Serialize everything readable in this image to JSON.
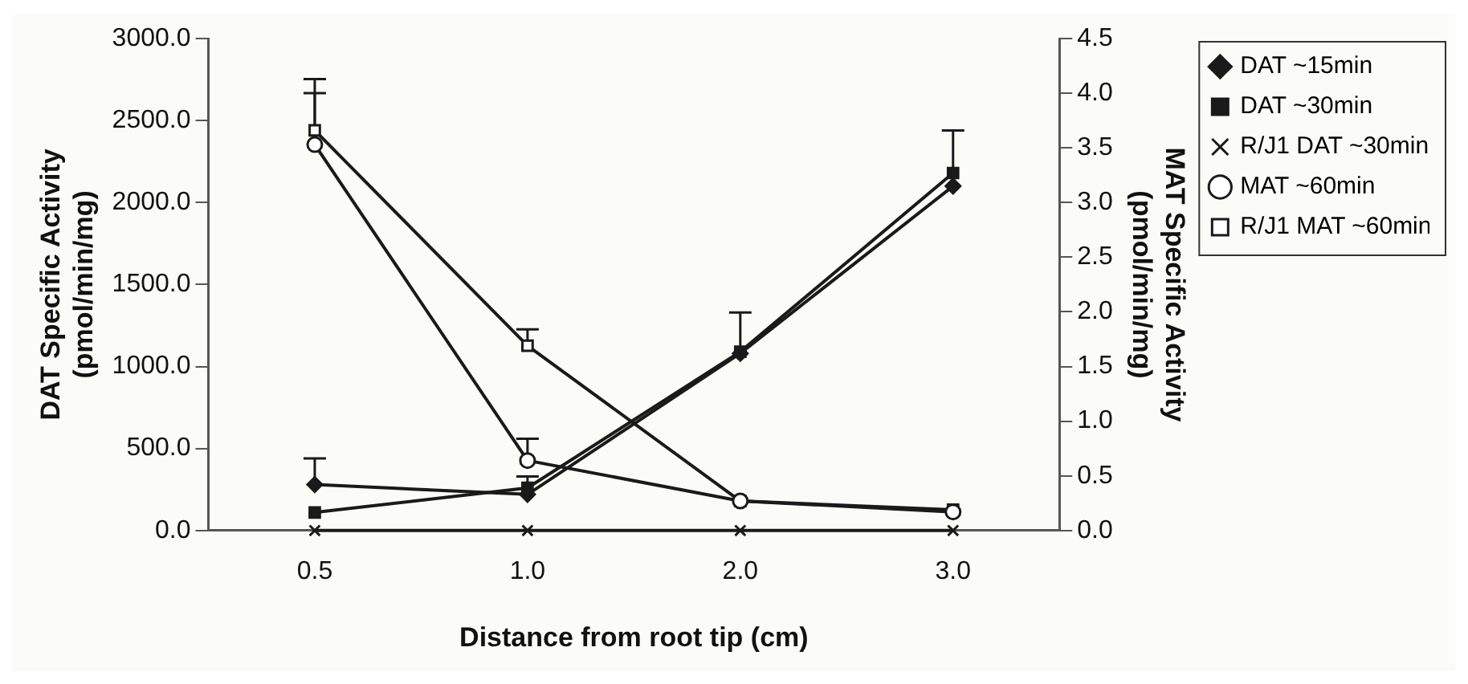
{
  "chart_data": {
    "type": "line",
    "xlabel": "Distance from root tip (cm)",
    "ylabel": "DAT Specific Activity\n(pmol/min/mg)",
    "y2label": "MAT Specific Activity\n(pmol/min/mg)",
    "categories": [
      "0.5",
      "1.0",
      "2.0",
      "3.0"
    ],
    "series": [
      {
        "name": "DAT ~15min",
        "color": "#1a1a1a",
        "marker": "diamond",
        "values": [
          280,
          220,
          1080,
          2100
        ],
        "errors": [
          [
            280,
            440
          ],
          null,
          null,
          null
        ]
      },
      {
        "name": "DAT ~30min",
        "color": "#1a1a1a",
        "marker": "square",
        "values": [
          110,
          260,
          1090,
          2180
        ],
        "errors": [
          null,
          [
            260,
            330
          ],
          [
            1090,
            1330
          ],
          [
            2180,
            2440
          ]
        ]
      },
      {
        "name": "R/J1 DAT ~30min",
        "color": "#1a1a1a",
        "marker": "cross",
        "values": [
          0,
          0,
          0,
          0
        ]
      },
      {
        "name": "MAT ~60min",
        "color": "#1a1a1a",
        "marker": "circle",
        "axis": "y2",
        "values": [
          3.53,
          0.64,
          0.27,
          0.17
        ],
        "errors": [
          [
            3.53,
            4.0
          ],
          [
            0.64,
            0.84
          ],
          null,
          null
        ]
      },
      {
        "name": "R/J1 MAT ~60min",
        "color": "#1a1a1a",
        "marker": "square",
        "axis": "y2",
        "values": [
          3.66,
          1.69,
          0.27,
          0.19
        ],
        "errors": [
          [
            3.66,
            4.13
          ],
          [
            1.69,
            1.84
          ],
          null,
          null
        ]
      }
    ],
    "ylim": [
      0,
      3000
    ],
    "yticks": [
      {
        "value": 0,
        "label": "0.0"
      },
      {
        "value": 500,
        "label": "500.0"
      },
      {
        "value": 1000,
        "label": "1000.0"
      },
      {
        "value": 1500,
        "label": "1500.0"
      },
      {
        "value": 2000,
        "label": "2000.0"
      },
      {
        "value": 2500,
        "label": "2500.0"
      },
      {
        "value": 3000,
        "label": "3000.0"
      }
    ],
    "y2lim": [
      0,
      4.5
    ],
    "y2ticks": [
      {
        "value": 0,
        "label": "0.0"
      },
      0.5,
      {
        "value": 1,
        "label": "1.0"
      },
      1.5,
      {
        "value": 2,
        "label": "2.0"
      },
      2.5,
      {
        "value": 3,
        "label": "3.0"
      },
      3.5,
      {
        "value": 4,
        "label": "4.0"
      },
      4.5
    ],
    "grid": false,
    "legend": "right",
    "line_style": "solid"
  }
}
